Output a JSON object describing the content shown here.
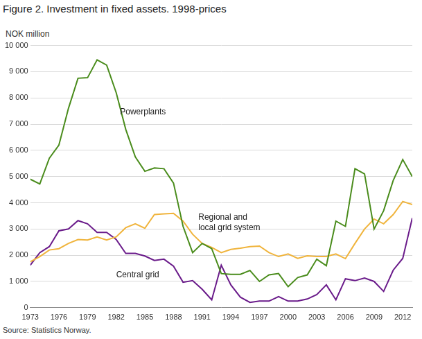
{
  "chart_data": {
    "type": "line",
    "title": "Figure 2. Investment in fixed assets. 1998-prices",
    "y_label": "NOK million",
    "source": "Source: Statistics Norway.",
    "x": [
      1973,
      1974,
      1975,
      1976,
      1977,
      1978,
      1979,
      1980,
      1981,
      1982,
      1983,
      1984,
      1985,
      1986,
      1987,
      1988,
      1989,
      1990,
      1991,
      1992,
      1993,
      1994,
      1995,
      1996,
      1997,
      1998,
      1999,
      2000,
      2001,
      2002,
      2003,
      2004,
      2005,
      2006,
      2007,
      2008,
      2009,
      2010,
      2011,
      2012,
      2013
    ],
    "series": [
      {
        "name": "Powerplants",
        "color": "#4a8c1c",
        "values": [
          4900,
          4720,
          5700,
          6200,
          7600,
          8750,
          8770,
          9450,
          9250,
          8200,
          6800,
          5750,
          5200,
          5330,
          5300,
          4750,
          3100,
          2100,
          2450,
          2250,
          1300,
          1270,
          1270,
          1420,
          1000,
          1250,
          1300,
          800,
          1150,
          1250,
          1850,
          1600,
          3300,
          3100,
          5300,
          5100,
          3000,
          3700,
          4850,
          5650,
          5000
        ]
      },
      {
        "name": "Regional and local grid system",
        "color": "#f0b43c",
        "values": [
          1750,
          1950,
          2200,
          2250,
          2450,
          2600,
          2580,
          2700,
          2580,
          2700,
          3050,
          3200,
          3030,
          3550,
          3580,
          3600,
          3300,
          2800,
          2450,
          2300,
          2100,
          2220,
          2270,
          2330,
          2350,
          2100,
          1950,
          2050,
          1880,
          1980,
          1950,
          1950,
          2050,
          1870,
          2450,
          3000,
          3380,
          3200,
          3550,
          4050,
          3930
        ]
      },
      {
        "name": "Central grid",
        "color": "#6a1b8a",
        "values": [
          1620,
          2100,
          2330,
          2930,
          3000,
          3320,
          3200,
          2870,
          2870,
          2600,
          2070,
          2070,
          1970,
          1800,
          1850,
          1580,
          970,
          1030,
          700,
          300,
          1620,
          870,
          400,
          200,
          250,
          250,
          420,
          250,
          250,
          330,
          500,
          870,
          300,
          1100,
          1030,
          1130,
          1000,
          620,
          1430,
          1880,
          3420
        ]
      }
    ],
    "annotations": [
      {
        "lines": [
          "Powerplants"
        ]
      },
      {
        "lines": [
          "Regional and",
          "local grid system"
        ]
      },
      {
        "lines": [
          "Central grid"
        ]
      }
    ],
    "xlim": [
      1973,
      2013
    ],
    "xticks": [
      1973,
      1976,
      1979,
      1982,
      1985,
      1988,
      1991,
      1994,
      1997,
      2000,
      2003,
      2006,
      2009,
      2012
    ],
    "ylim": [
      0,
      10000
    ],
    "yticks": [
      0,
      {
        "value": 1000,
        "label": "1 000"
      },
      {
        "value": 2000,
        "label": "2 000"
      },
      {
        "value": 3000,
        "label": "3 000"
      },
      {
        "value": 4000,
        "label": "4 000"
      },
      {
        "value": 5000,
        "label": "5 000"
      },
      {
        "value": 6000,
        "label": "6 000"
      },
      {
        "value": 7000,
        "label": "7 000"
      },
      {
        "value": 8000,
        "label": "8 000"
      },
      {
        "value": 9000,
        "label": "9 000"
      },
      {
        "value": 10000,
        "label": "10 000"
      }
    ],
    "grid": true
  }
}
